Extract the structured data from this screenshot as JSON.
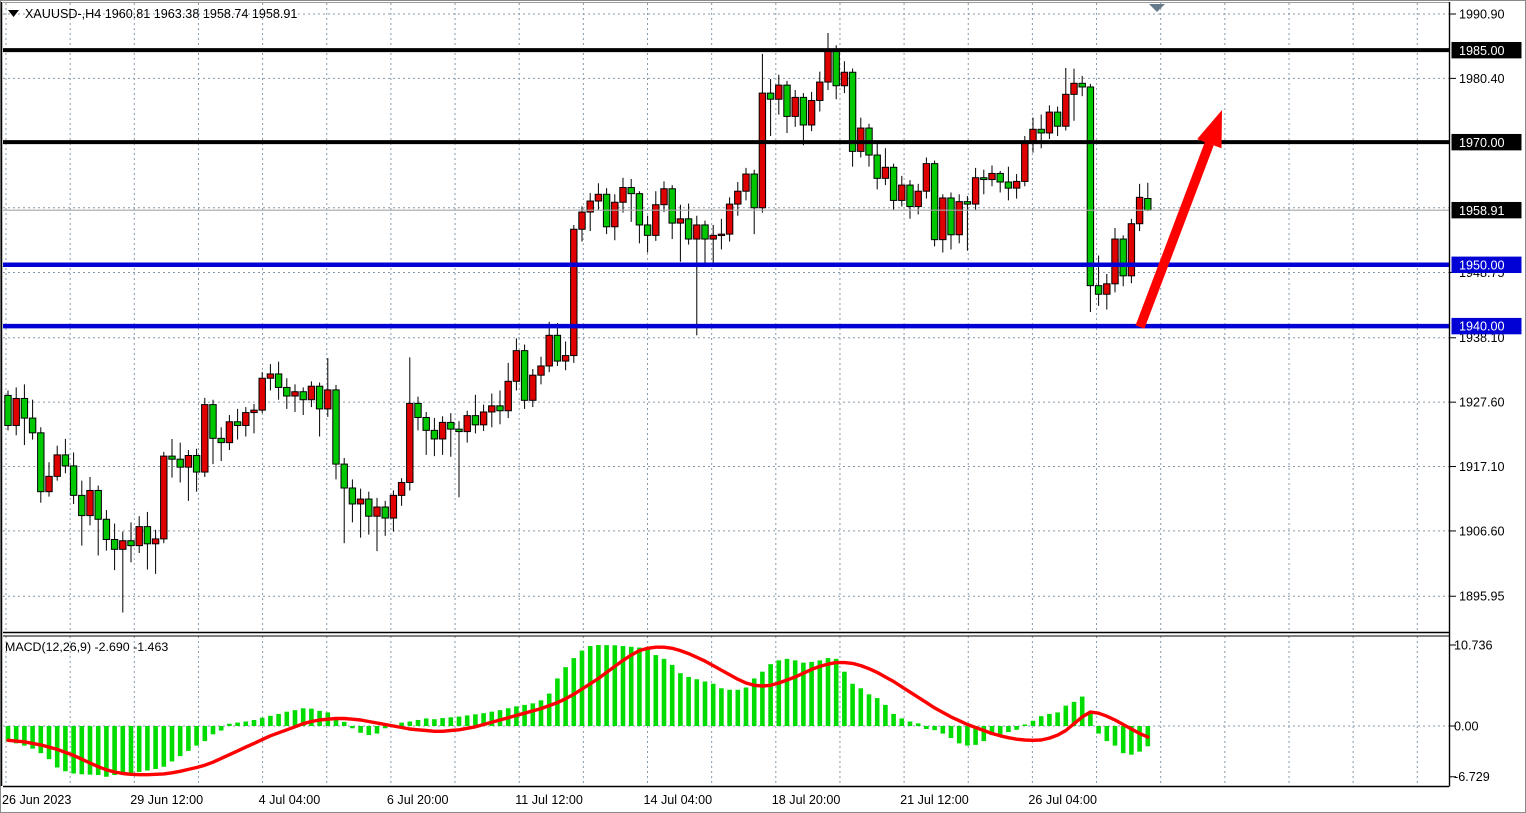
{
  "window": {
    "symbol_marker_icon": "down-triangle",
    "title_text": "XAUUSD-,H4  1960.81 1963.38 1958.74 1958.91",
    "scroll_marker_icon": "down-triangle-gray"
  },
  "colors": {
    "background": "#ffffff",
    "bull_candle": "#e00000",
    "bear_candle": "#00c800",
    "candle_outline": "#000000",
    "wick": "#000000",
    "macd_histogram": "#00dc00",
    "macd_signal_line": "#ff0000",
    "black_level_line": "#000000",
    "blue_level_line": "#0101d6",
    "current_price_line": "#a6a6a6",
    "grid": "#8799a9",
    "badge_black_bg": "#000000",
    "badge_blue_bg": "#0101d6",
    "badge_text": "#ffffff",
    "axis_text": "#000000",
    "trend_arrow": "#ff0000",
    "scroll_marker": "#64798a"
  },
  "price_axis": {
    "ticks": [
      {
        "label": "1990.90",
        "price": 1990.9
      },
      {
        "label": "1980.40",
        "price": 1980.4
      },
      {
        "label": "",
        "price": 1969.85
      },
      {
        "label": "",
        "price": 1959.3
      },
      {
        "label": "1948.75",
        "price": 1948.75
      },
      {
        "label": "1938.10",
        "price": 1938.1
      },
      {
        "label": "1927.60",
        "price": 1927.6
      },
      {
        "label": "1917.10",
        "price": 1917.1
      },
      {
        "label": "1906.60",
        "price": 1906.6
      },
      {
        "label": "1895.95",
        "price": 1895.95
      }
    ],
    "badges": [
      {
        "label": "1985.00",
        "price": 1985.0,
        "style": "black"
      },
      {
        "label": "1970.00",
        "price": 1970.0,
        "style": "black"
      },
      {
        "label": "1958.91",
        "price": 1958.91,
        "style": "black"
      },
      {
        "label": "1950.00",
        "price": 1950.0,
        "style": "blue"
      },
      {
        "label": "1940.00",
        "price": 1940.0,
        "style": "blue"
      }
    ]
  },
  "time_axis": {
    "labels": [
      {
        "text": "26 Jun 2023",
        "grid_index": 0
      },
      {
        "text": "29 Jun 12:00",
        "grid_index": 2
      },
      {
        "text": "4 Jul 04:00",
        "grid_index": 4
      },
      {
        "text": "6 Jul 20:00",
        "grid_index": 6
      },
      {
        "text": "11 Jul 12:00",
        "grid_index": 8
      },
      {
        "text": "14 Jul 04:00",
        "grid_index": 10
      },
      {
        "text": "18 Jul 20:00",
        "grid_index": 12
      },
      {
        "text": "21 Jul 12:00",
        "grid_index": 14
      },
      {
        "text": "26 Jul 04:00",
        "grid_index": 16
      }
    ]
  },
  "chart_data": {
    "type": "candlestick",
    "title": "XAUUSD-,H4  1960.81 1963.38 1958.74 1958.91",
    "symbol": "XAUUSD-",
    "timeframe": "H4",
    "last_bar": {
      "open": 1960.81,
      "high": 1963.38,
      "low": 1958.74,
      "close": 1958.91
    },
    "ylim": [
      1893.0,
      1992.9
    ],
    "note_color_scheme": "red body = close above open, green body = close below open",
    "levels": [
      {
        "price": 1985.0,
        "style": "black",
        "width": 4
      },
      {
        "price": 1970.0,
        "style": "black",
        "width": 4
      },
      {
        "price": 1958.91,
        "style": "gray-current",
        "width": 1.2
      },
      {
        "price": 1950.0,
        "style": "blue",
        "width": 4.5
      },
      {
        "price": 1940.0,
        "style": "blue",
        "width": 4.5
      }
    ],
    "trend_arrow": {
      "from_price": 1939.9,
      "to_price": 1975.1,
      "shape": "up-right-arrow"
    },
    "candles": [
      [
        1928.7,
        1929.5,
        1923.0,
        1923.8
      ],
      [
        1923.8,
        1930.0,
        1922.2,
        1928.2
      ],
      [
        1928.2,
        1930.5,
        1920.6,
        1925.0
      ],
      [
        1925.0,
        1928.0,
        1921.5,
        1922.6
      ],
      [
        1922.6,
        1923.5,
        1911.2,
        1913.0
      ],
      [
        1913.0,
        1917.8,
        1912.2,
        1915.5
      ],
      [
        1915.5,
        1920.5,
        1914.8,
        1919.0
      ],
      [
        1919.0,
        1921.6,
        1916.0,
        1917.2
      ],
      [
        1917.2,
        1919.4,
        1911.0,
        1912.4
      ],
      [
        1912.4,
        1914.8,
        1904.2,
        1909.1
      ],
      [
        1909.1,
        1915.4,
        1907.5,
        1913.2
      ],
      [
        1913.2,
        1914.0,
        1902.6,
        1908.5
      ],
      [
        1908.5,
        1910.0,
        1903.4,
        1905.2
      ],
      [
        1905.2,
        1907.8,
        1900.2,
        1903.6
      ],
      [
        1903.6,
        1906.5,
        1893.3,
        1905.0
      ],
      [
        1905.0,
        1908.0,
        1901.5,
        1904.2
      ],
      [
        1904.2,
        1909.0,
        1903.0,
        1907.3
      ],
      [
        1907.3,
        1909.7,
        1900.3,
        1904.5
      ],
      [
        1904.5,
        1906.8,
        1899.6,
        1905.3
      ],
      [
        1905.3,
        1919.5,
        1904.6,
        1918.8
      ],
      [
        1918.8,
        1921.6,
        1915.3,
        1918.3
      ],
      [
        1918.3,
        1921.0,
        1914.5,
        1917.0
      ],
      [
        1917.0,
        1919.8,
        1911.5,
        1918.9
      ],
      [
        1918.9,
        1920.0,
        1913.0,
        1916.2
      ],
      [
        1916.2,
        1928.3,
        1915.4,
        1927.2
      ],
      [
        1927.2,
        1928.0,
        1917.5,
        1921.7
      ],
      [
        1921.7,
        1923.5,
        1918.0,
        1921.0
      ],
      [
        1921.0,
        1925.5,
        1919.8,
        1924.4
      ],
      [
        1924.4,
        1926.5,
        1921.5,
        1923.8
      ],
      [
        1923.8,
        1926.8,
        1922.0,
        1925.9
      ],
      [
        1925.9,
        1927.3,
        1922.5,
        1926.3
      ],
      [
        1926.3,
        1932.5,
        1925.8,
        1931.5
      ],
      [
        1931.5,
        1933.8,
        1929.5,
        1932.2
      ],
      [
        1932.2,
        1934.2,
        1928.0,
        1930.0
      ],
      [
        1930.0,
        1931.5,
        1926.5,
        1928.6
      ],
      [
        1928.6,
        1930.5,
        1926.0,
        1929.3
      ],
      [
        1929.3,
        1930.0,
        1925.5,
        1928.0
      ],
      [
        1928.0,
        1931.0,
        1926.8,
        1930.2
      ],
      [
        1930.2,
        1930.8,
        1922.0,
        1926.5
      ],
      [
        1926.5,
        1934.8,
        1925.2,
        1929.6
      ],
      [
        1929.6,
        1930.4,
        1915.0,
        1917.5
      ],
      [
        1917.5,
        1918.5,
        1904.6,
        1913.6
      ],
      [
        1913.6,
        1915.0,
        1908.0,
        1911.0
      ],
      [
        1911.0,
        1913.5,
        1905.5,
        1911.8
      ],
      [
        1911.8,
        1913.0,
        1906.0,
        1909.0
      ],
      [
        1909.0,
        1912.0,
        1903.3,
        1910.5
      ],
      [
        1910.5,
        1911.5,
        1905.8,
        1908.7
      ],
      [
        1908.7,
        1913.2,
        1906.5,
        1912.4
      ],
      [
        1912.4,
        1915.2,
        1910.7,
        1914.5
      ],
      [
        1914.5,
        1934.9,
        1913.2,
        1927.4
      ],
      [
        1927.4,
        1928.5,
        1923.0,
        1925.1
      ],
      [
        1925.1,
        1926.0,
        1919.0,
        1923.0
      ],
      [
        1923.0,
        1925.0,
        1918.8,
        1921.6
      ],
      [
        1921.6,
        1925.3,
        1919.0,
        1924.3
      ],
      [
        1924.3,
        1925.8,
        1918.7,
        1923.2
      ],
      [
        1923.2,
        1924.5,
        1912.1,
        1922.8
      ],
      [
        1922.8,
        1926.2,
        1921.0,
        1925.4
      ],
      [
        1925.4,
        1928.8,
        1922.5,
        1923.9
      ],
      [
        1923.9,
        1927.2,
        1922.9,
        1926.0
      ],
      [
        1926.0,
        1929.0,
        1923.5,
        1927.0
      ],
      [
        1927.0,
        1929.5,
        1924.0,
        1926.2
      ],
      [
        1926.2,
        1934.0,
        1925.0,
        1931.0
      ],
      [
        1931.0,
        1938.0,
        1929.5,
        1936.0
      ],
      [
        1936.0,
        1937.0,
        1926.5,
        1927.9
      ],
      [
        1927.9,
        1933.0,
        1926.8,
        1932.0
      ],
      [
        1932.0,
        1935.0,
        1930.5,
        1933.5
      ],
      [
        1933.5,
        1940.7,
        1932.5,
        1938.5
      ],
      [
        1938.5,
        1940.5,
        1933.5,
        1934.3
      ],
      [
        1934.3,
        1937.5,
        1932.8,
        1935.2
      ],
      [
        1935.2,
        1956.5,
        1934.0,
        1955.8
      ],
      [
        1955.8,
        1959.5,
        1953.8,
        1958.6
      ],
      [
        1958.6,
        1961.7,
        1955.5,
        1960.4
      ],
      [
        1960.4,
        1963.3,
        1959.0,
        1961.5
      ],
      [
        1961.5,
        1962.5,
        1955.0,
        1956.2
      ],
      [
        1956.2,
        1961.5,
        1954.0,
        1960.2
      ],
      [
        1960.2,
        1964.2,
        1958.5,
        1962.6
      ],
      [
        1962.6,
        1964.0,
        1957.0,
        1961.6
      ],
      [
        1961.6,
        1962.0,
        1953.5,
        1956.5
      ],
      [
        1956.5,
        1958.0,
        1952.0,
        1954.8
      ],
      [
        1954.8,
        1962.0,
        1953.9,
        1959.8
      ],
      [
        1959.8,
        1963.6,
        1958.6,
        1962.4
      ],
      [
        1962.4,
        1963.0,
        1954.2,
        1956.8
      ],
      [
        1956.8,
        1959.8,
        1950.5,
        1957.5
      ],
      [
        1957.5,
        1960.0,
        1953.3,
        1954.2
      ],
      [
        1954.2,
        1958.0,
        1938.5,
        1956.5
      ],
      [
        1956.5,
        1957.2,
        1950.1,
        1954.2
      ],
      [
        1954.2,
        1956.5,
        1950.0,
        1954.8
      ],
      [
        1954.8,
        1957.5,
        1952.5,
        1955.0
      ],
      [
        1955.0,
        1961.0,
        1953.8,
        1959.9
      ],
      [
        1959.9,
        1963.5,
        1958.0,
        1962.0
      ],
      [
        1962.0,
        1965.8,
        1960.5,
        1964.8
      ],
      [
        1964.8,
        1965.5,
        1955.0,
        1959.3
      ],
      [
        1959.3,
        1984.4,
        1958.5,
        1978.0
      ],
      [
        1978.0,
        1980.3,
        1971.0,
        1977.0
      ],
      [
        1977.0,
        1981.0,
        1974.5,
        1979.3
      ],
      [
        1979.3,
        1980.0,
        1971.5,
        1974.2
      ],
      [
        1974.2,
        1978.5,
        1972.5,
        1977.3
      ],
      [
        1977.3,
        1978.0,
        1969.5,
        1972.8
      ],
      [
        1972.8,
        1978.2,
        1971.8,
        1976.8
      ],
      [
        1976.8,
        1981.5,
        1975.0,
        1979.8
      ],
      [
        1979.8,
        1987.8,
        1978.5,
        1985.0
      ],
      [
        1985.0,
        1985.8,
        1977.0,
        1979.2
      ],
      [
        1979.2,
        1983.2,
        1978.0,
        1981.4
      ],
      [
        1981.4,
        1982.0,
        1966.0,
        1968.5
      ],
      [
        1968.5,
        1974.0,
        1967.5,
        1972.3
      ],
      [
        1972.3,
        1973.0,
        1966.0,
        1967.9
      ],
      [
        1967.9,
        1969.8,
        1962.3,
        1964.1
      ],
      [
        1964.1,
        1969.0,
        1963.0,
        1965.9
      ],
      [
        1965.9,
        1966.5,
        1959.0,
        1960.5
      ],
      [
        1960.5,
        1964.5,
        1959.5,
        1963.0
      ],
      [
        1963.0,
        1963.8,
        1957.5,
        1959.5
      ],
      [
        1959.5,
        1963.2,
        1958.2,
        1962.0
      ],
      [
        1962.0,
        1967.5,
        1960.8,
        1966.5
      ],
      [
        1966.5,
        1967.0,
        1953.0,
        1954.1
      ],
      [
        1954.1,
        1961.5,
        1952.0,
        1960.9
      ],
      [
        1960.9,
        1961.8,
        1952.5,
        1954.9
      ],
      [
        1954.9,
        1961.5,
        1953.5,
        1960.3
      ],
      [
        1960.3,
        1961.2,
        1952.3,
        1959.9
      ],
      [
        1959.9,
        1965.8,
        1958.9,
        1964.2
      ],
      [
        1964.2,
        1965.5,
        1961.5,
        1963.9
      ],
      [
        1963.9,
        1966.2,
        1962.8,
        1964.9
      ],
      [
        1964.9,
        1965.3,
        1961.8,
        1963.5
      ],
      [
        1963.5,
        1966.0,
        1960.5,
        1962.5
      ],
      [
        1962.5,
        1964.8,
        1960.8,
        1963.6
      ],
      [
        1963.6,
        1971.0,
        1962.8,
        1970.2
      ],
      [
        1970.2,
        1974.0,
        1968.3,
        1972.1
      ],
      [
        1972.1,
        1974.5,
        1969.0,
        1971.5
      ],
      [
        1971.5,
        1976.0,
        1970.5,
        1974.9
      ],
      [
        1974.9,
        1975.8,
        1971.0,
        1972.6
      ],
      [
        1972.6,
        1982.1,
        1971.9,
        1977.8
      ],
      [
        1977.8,
        1982.0,
        1973.5,
        1979.6
      ],
      [
        1979.6,
        1980.8,
        1977.5,
        1979.0
      ],
      [
        1979.0,
        1979.5,
        1942.3,
        1946.6
      ],
      [
        1946.6,
        1951.5,
        1943.3,
        1945.2
      ],
      [
        1945.2,
        1948.5,
        1942.7,
        1946.9
      ],
      [
        1946.9,
        1956.0,
        1945.5,
        1954.2
      ],
      [
        1954.2,
        1954.8,
        1946.5,
        1948.2
      ],
      [
        1948.2,
        1957.5,
        1947.0,
        1956.7
      ],
      [
        1956.7,
        1963.2,
        1955.5,
        1961.0
      ],
      [
        1960.81,
        1963.38,
        1958.74,
        1958.91
      ]
    ],
    "indicator": {
      "name_label": "MACD(12,26,9)",
      "macd_value_label": "-2.690",
      "signal_value_label": "-1.463",
      "scale_max_label": "10.736",
      "scale_zero_label": "0.00",
      "scale_min_label": "-6.729",
      "histogram": [
        -2.0,
        -2.3,
        -2.6,
        -3.0,
        -3.6,
        -4.4,
        -5.5,
        -6.0,
        -6.3,
        -6.4,
        -6.45,
        -6.5,
        -6.729,
        -6.5,
        -6.4,
        -6.3,
        -6.1,
        -5.9,
        -5.7,
        -5.4,
        -4.7,
        -4.0,
        -3.3,
        -2.6,
        -2.0,
        -1.1,
        -0.6,
        0.3,
        0.45,
        0.6,
        0.8,
        1.1,
        1.35,
        1.6,
        1.9,
        2.1,
        2.35,
        2.3,
        2.0,
        1.8,
        1.0,
        0.55,
        -0.3,
        -0.9,
        -1.2,
        -1.0,
        -0.3,
        0.2,
        0.45,
        0.6,
        0.8,
        1.0,
        0.9,
        1.05,
        1.15,
        1.25,
        1.4,
        1.55,
        1.7,
        1.9,
        2.1,
        2.35,
        2.6,
        2.8,
        3.0,
        3.4,
        4.3,
        6.3,
        7.8,
        9.0,
        10.0,
        10.6,
        10.736,
        10.72,
        10.7,
        10.6,
        10.5,
        10.4,
        10.2,
        9.4,
        8.9,
        8.1,
        7.0,
        6.5,
        6.2,
        5.9,
        5.6,
        5.0,
        4.8,
        4.8,
        5.1,
        6.3,
        7.2,
        8.2,
        8.7,
        8.9,
        8.7,
        8.4,
        8.5,
        8.7,
        9.0,
        8.9,
        7.2,
        5.6,
        5.0,
        4.2,
        3.7,
        2.8,
        1.6,
        1.0,
        0.6,
        0.35,
        -0.4,
        -0.55,
        -1.0,
        -1.6,
        -2.3,
        -2.6,
        -2.5,
        -2.0,
        -1.2,
        -1.1,
        -0.8,
        -0.5,
        0.2,
        0.7,
        1.3,
        1.6,
        1.8,
        2.7,
        3.2,
        3.9,
        1.8,
        -1.0,
        -2.0,
        -2.6,
        -3.6,
        -3.8,
        -3.4,
        -2.69
      ],
      "signal": [
        -1.9,
        -2.0,
        -2.1,
        -2.3,
        -2.5,
        -2.8,
        -3.1,
        -3.5,
        -3.9,
        -4.4,
        -4.9,
        -5.4,
        -5.8,
        -6.1,
        -6.3,
        -6.4,
        -6.45,
        -6.45,
        -6.4,
        -6.35,
        -6.2,
        -6.0,
        -5.75,
        -5.5,
        -5.2,
        -4.8,
        -4.3,
        -3.8,
        -3.3,
        -2.8,
        -2.3,
        -1.8,
        -1.3,
        -0.9,
        -0.5,
        -0.1,
        0.3,
        0.6,
        0.8,
        0.9,
        1.0,
        1.0,
        0.9,
        0.8,
        0.6,
        0.4,
        0.2,
        0.0,
        -0.2,
        -0.4,
        -0.5,
        -0.6,
        -0.7,
        -0.7,
        -0.6,
        -0.5,
        -0.3,
        -0.1,
        0.2,
        0.5,
        0.8,
        1.1,
        1.4,
        1.7,
        2.0,
        2.3,
        2.7,
        3.1,
        3.6,
        4.2,
        4.9,
        5.6,
        6.3,
        7.1,
        7.9,
        8.7,
        9.4,
        10.0,
        10.3,
        10.45,
        10.45,
        10.3,
        10.0,
        9.6,
        9.1,
        8.6,
        8.0,
        7.4,
        6.8,
        6.2,
        5.7,
        5.4,
        5.3,
        5.4,
        5.7,
        6.1,
        6.5,
        7.0,
        7.5,
        7.9,
        8.2,
        8.4,
        8.4,
        8.3,
        8.0,
        7.6,
        7.1,
        6.5,
        5.9,
        5.2,
        4.5,
        3.8,
        3.1,
        2.4,
        1.8,
        1.2,
        0.7,
        0.2,
        -0.2,
        -0.6,
        -1.0,
        -1.3,
        -1.55,
        -1.75,
        -1.85,
        -1.9,
        -1.85,
        -1.6,
        -1.2,
        -0.6,
        0.3,
        1.2,
        1.85,
        1.7,
        1.3,
        0.8,
        0.2,
        -0.4,
        -1.0,
        -1.463
      ]
    }
  }
}
